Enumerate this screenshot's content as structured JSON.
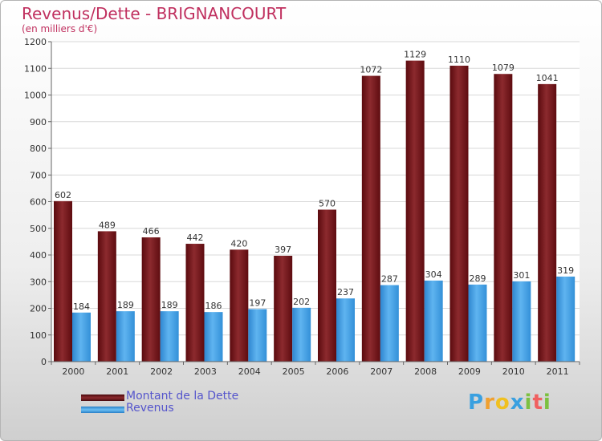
{
  "chart_data": {
    "type": "bar",
    "title": "Revenus/Dette - BRIGNANCOURT",
    "subtitle": "(en milliers d'€)",
    "categories": [
      "2000",
      "2001",
      "2002",
      "2003",
      "2004",
      "2005",
      "2006",
      "2007",
      "2008",
      "2009",
      "2010",
      "2011"
    ],
    "series": [
      {
        "name": "Montant de la Dette",
        "color": "#7a1a1f",
        "values": [
          602,
          489,
          466,
          442,
          420,
          397,
          570,
          1072,
          1129,
          1110,
          1079,
          1041
        ]
      },
      {
        "name": "Revenus",
        "color": "#3d9be0",
        "values": [
          184,
          189,
          189,
          186,
          197,
          202,
          237,
          287,
          304,
          289,
          301,
          319
        ]
      }
    ],
    "ylim": [
      0,
      1200
    ],
    "yticks": [
      0,
      100,
      200,
      300,
      400,
      500,
      600,
      700,
      800,
      900,
      1000,
      1100,
      1200
    ],
    "grid": true,
    "legend": "bottom-left"
  },
  "logo": {
    "letters": [
      "P",
      "r",
      "o",
      "x",
      "i",
      "t",
      "i"
    ],
    "colors": [
      "#3aa0e0",
      "#f0a030",
      "#f0c020",
      "#3aa0e0",
      "#7cc040",
      "#f06060",
      "#7cc040"
    ]
  }
}
